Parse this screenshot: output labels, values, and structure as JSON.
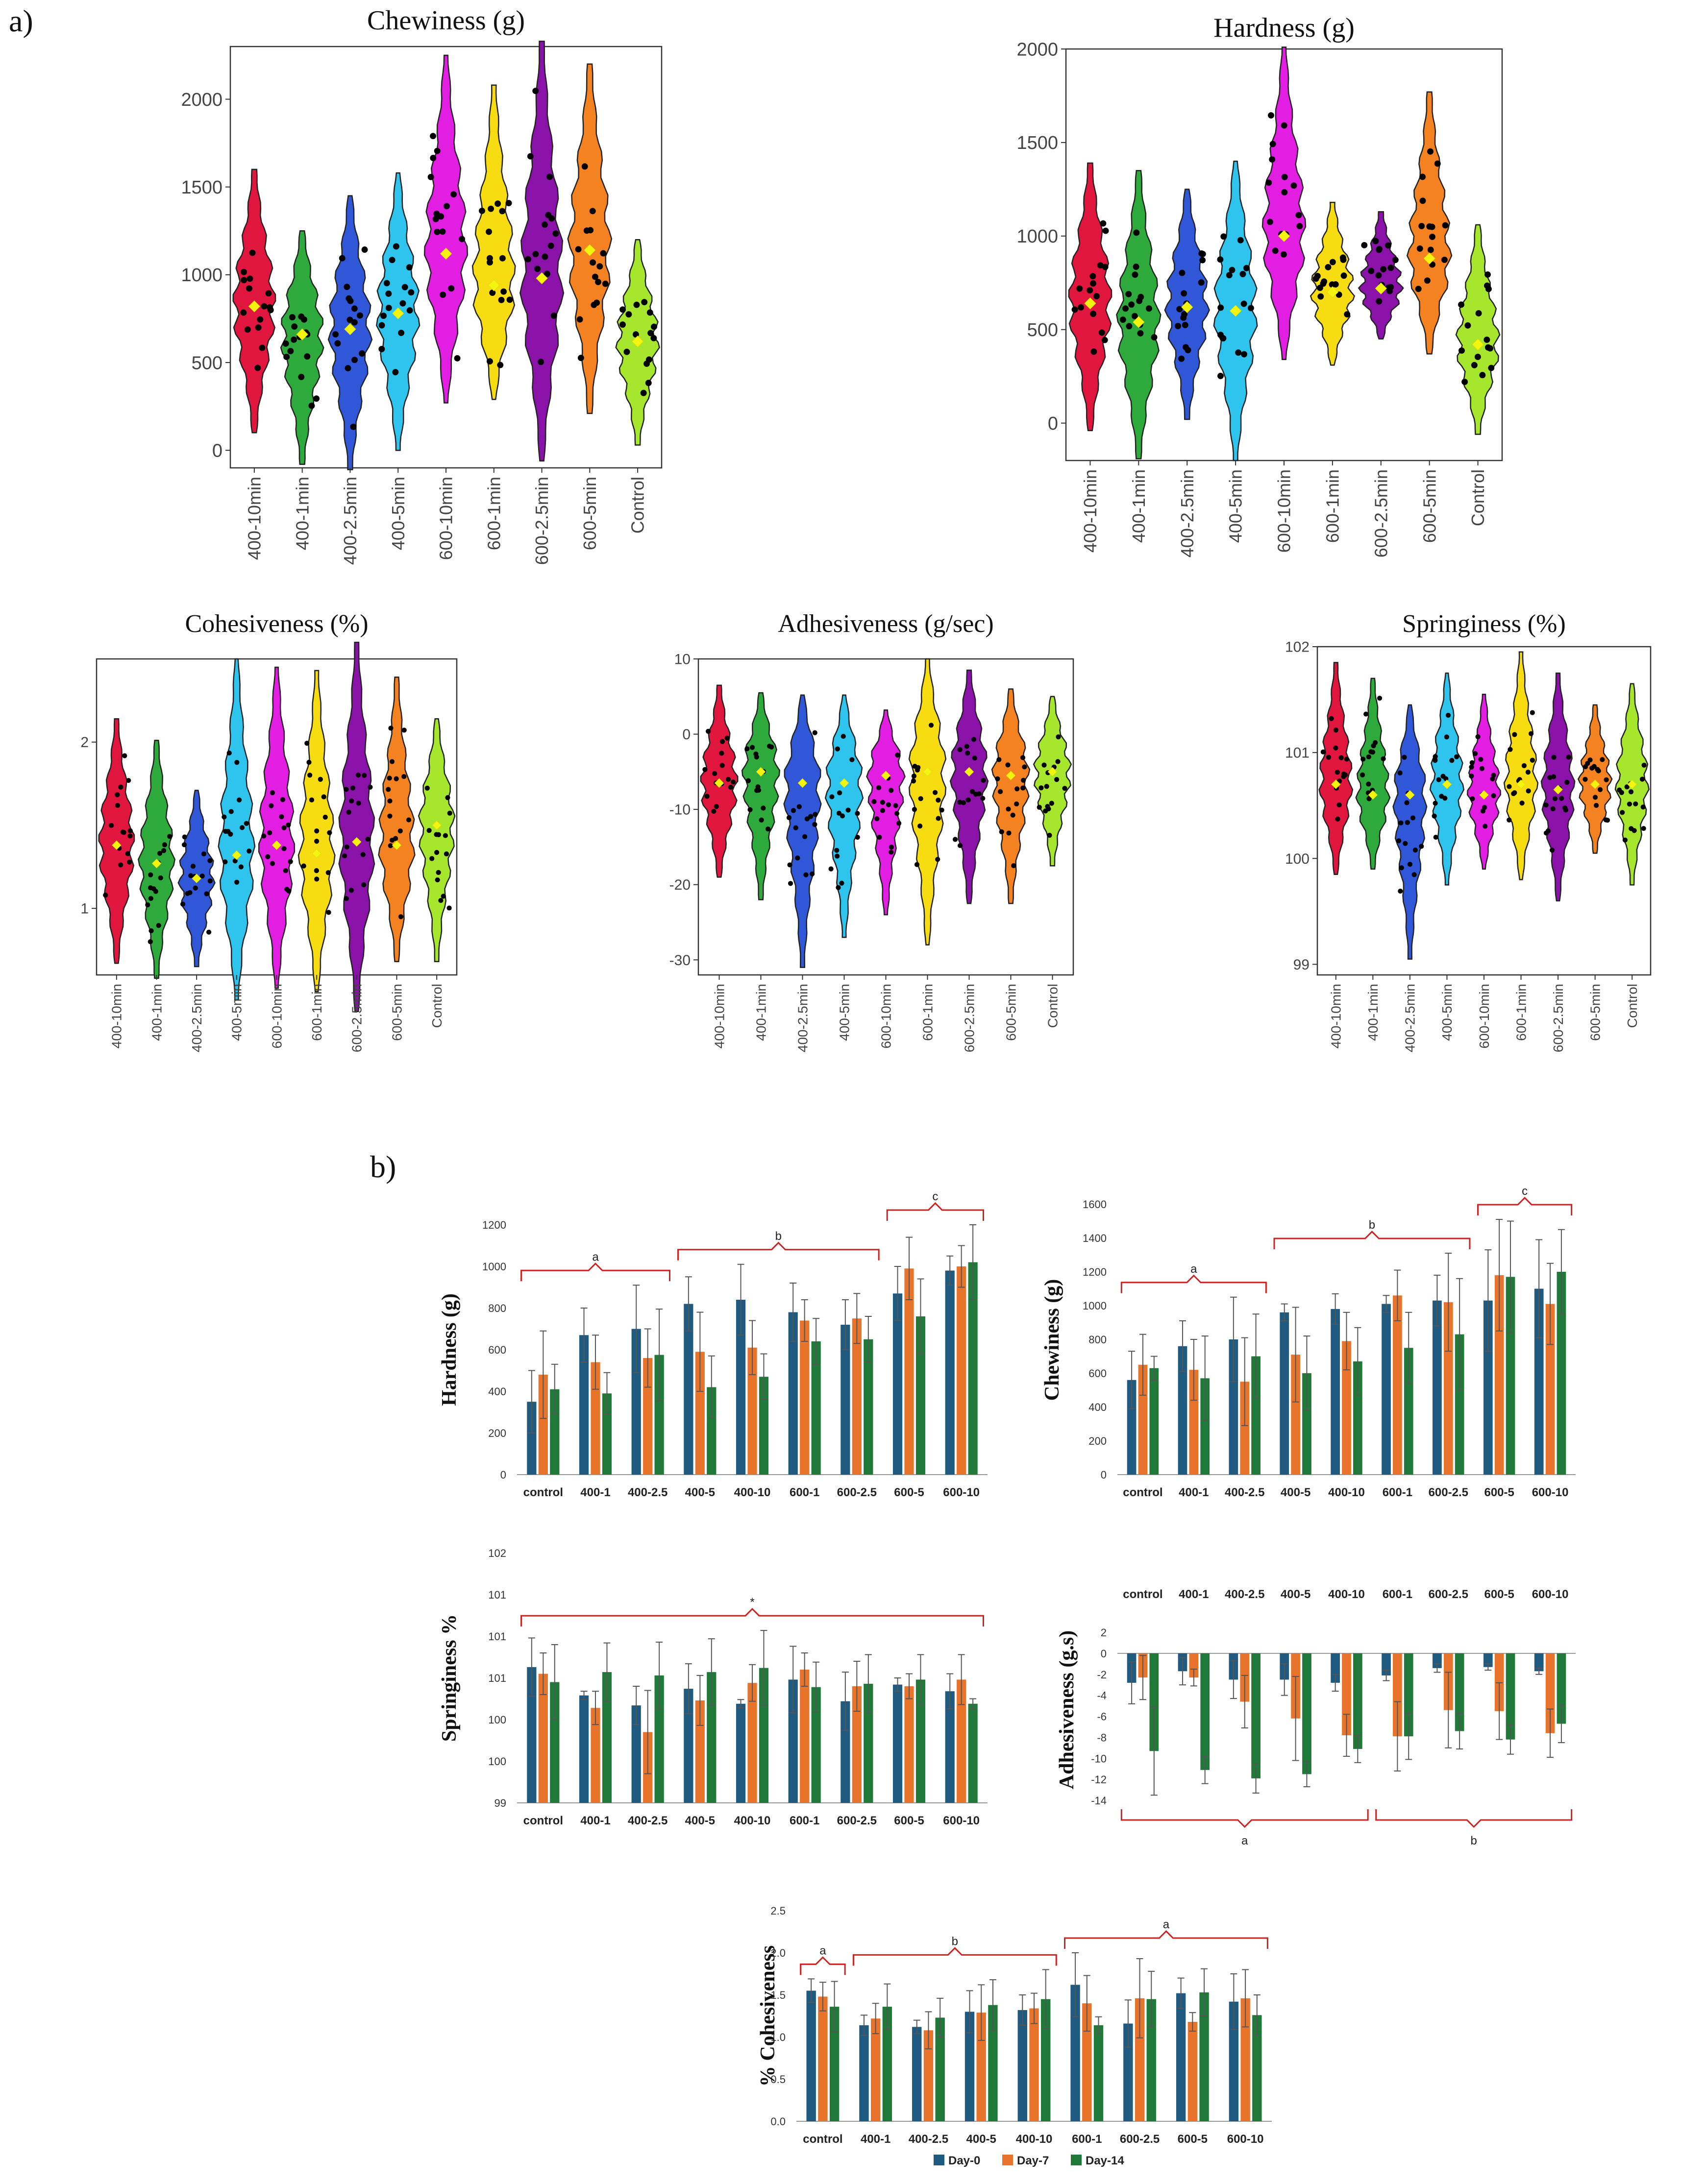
{
  "panel_labels": {
    "a": "a)",
    "b": "b)"
  },
  "violin_categories": [
    "400-10min",
    "400-1min",
    "400-2.5min",
    "400-5min",
    "600-10min",
    "600-1min",
    "600-2.5min",
    "600-5min",
    "Control"
  ],
  "violin_colors": [
    "#e0163f",
    "#2eaa3c",
    "#3157d9",
    "#2fc4ee",
    "#e31ee3",
    "#f7dc12",
    "#8a12a8",
    "#f58220",
    "#a6e62c"
  ],
  "bar_colors": {
    "Day-0": "#1f5a80",
    "Day-7": "#e8742b",
    "Day-14": "#1f7a3a"
  },
  "bracket_color": "#cc2222",
  "legend": [
    "Day-0",
    "Day-7",
    "Day-14"
  ],
  "chart_data": [
    {
      "id": "v_chewiness",
      "type": "violin",
      "title": "Chewiness (g)",
      "ylim": [
        -100,
        2300
      ],
      "yticks": [
        0,
        500,
        1000,
        1500,
        2000
      ],
      "means": [
        820,
        660,
        690,
        780,
        1120,
        940,
        980,
        1140,
        620
      ],
      "ranges": [
        [
          100,
          1600
        ],
        [
          -80,
          1250
        ],
        [
          -110,
          1450
        ],
        [
          0,
          1580
        ],
        [
          270,
          2250
        ],
        [
          290,
          2080
        ],
        [
          -60,
          2330
        ],
        [
          210,
          2200
        ],
        [
          30,
          1200
        ]
      ]
    },
    {
      "id": "v_hardness",
      "type": "violin",
      "title": "Hardness (g)",
      "ylim": [
        -200,
        2000
      ],
      "yticks": [
        0,
        500,
        1000,
        1500,
        2000
      ],
      "means": [
        640,
        540,
        620,
        600,
        1000,
        700,
        720,
        880,
        420
      ],
      "ranges": [
        [
          -40,
          1390
        ],
        [
          -190,
          1350
        ],
        [
          20,
          1250
        ],
        [
          -200,
          1400
        ],
        [
          340,
          2010
        ],
        [
          310,
          1180
        ],
        [
          450,
          1130
        ],
        [
          370,
          1770
        ],
        [
          -60,
          1060
        ]
      ]
    },
    {
      "id": "v_cohesiveness",
      "type": "violin",
      "title": "Cohesiveness (%)",
      "ylim": [
        0.6,
        2.5
      ],
      "yticks": [
        1,
        2
      ],
      "means": [
        1.38,
        1.27,
        1.18,
        1.32,
        1.38,
        1.33,
        1.4,
        1.38,
        1.5
      ],
      "ranges": [
        [
          0.67,
          2.14
        ],
        [
          0.58,
          2.01
        ],
        [
          0.65,
          1.71
        ],
        [
          0.45,
          2.5
        ],
        [
          0.52,
          2.45
        ],
        [
          0.5,
          2.43
        ],
        [
          0.38,
          2.6
        ],
        [
          0.68,
          2.39
        ],
        [
          0.68,
          2.14
        ]
      ]
    },
    {
      "id": "v_adhesiveness",
      "type": "violin",
      "title": "Adhesiveness (g/sec)",
      "ylim": [
        -32,
        10
      ],
      "yticks": [
        10,
        0,
        -10,
        -20,
        -30
      ],
      "means": [
        -6.5,
        -5,
        -6.5,
        -6.5,
        -5.5,
        -5,
        -5,
        -5.5,
        -5
      ],
      "ranges": [
        [
          -19,
          6.5
        ],
        [
          -22,
          5.5
        ],
        [
          -31,
          5.2
        ],
        [
          -27,
          5.2
        ],
        [
          -24,
          3.2
        ],
        [
          -28,
          10
        ],
        [
          -22.5,
          8.5
        ],
        [
          -22.5,
          6
        ],
        [
          -17.5,
          5
        ]
      ]
    },
    {
      "id": "v_springiness",
      "type": "violin",
      "title": "Springiness (%)",
      "ylim": [
        98.9,
        102
      ],
      "yticks": [
        99,
        100,
        101,
        102
      ],
      "means": [
        100.7,
        100.6,
        100.6,
        100.7,
        100.6,
        100.7,
        100.65,
        100.7,
        100.7
      ],
      "ranges": [
        [
          99.85,
          101.85
        ],
        [
          99.9,
          101.7
        ],
        [
          99.05,
          101.45
        ],
        [
          99.75,
          101.75
        ],
        [
          99.9,
          101.55
        ],
        [
          99.8,
          101.95
        ],
        [
          99.6,
          101.75
        ],
        [
          100.05,
          101.45
        ],
        [
          99.75,
          101.65
        ]
      ]
    },
    {
      "id": "b_hardness",
      "type": "bar",
      "ylabel": "Hardness (g)",
      "categories": [
        "control",
        "400-1",
        "400-2.5",
        "400-5",
        "400-10",
        "600-1",
        "600-2.5",
        "600-5",
        "600-10"
      ],
      "ylim": [
        0,
        1200
      ],
      "yticks": [
        0,
        200,
        400,
        600,
        800,
        1000,
        1200
      ],
      "ytick_labels": [
        "0",
        "200",
        "400",
        "600",
        "800",
        "1000",
        "1200"
      ],
      "series": [
        {
          "name": "Day-0",
          "values": [
            350,
            670,
            700,
            820,
            840,
            780,
            720,
            870,
            980
          ],
          "errors": [
            150,
            130,
            210,
            130,
            170,
            140,
            120,
            130,
            70
          ]
        },
        {
          "name": "Day-7",
          "values": [
            480,
            540,
            560,
            590,
            610,
            740,
            750,
            990,
            1000
          ],
          "errors": [
            210,
            130,
            140,
            190,
            130,
            100,
            120,
            150,
            100
          ]
        },
        {
          "name": "Day-14",
          "values": [
            410,
            390,
            575,
            420,
            470,
            640,
            650,
            760,
            1020
          ],
          "errors": [
            120,
            100,
            220,
            150,
            110,
            110,
            110,
            180,
            180
          ]
        }
      ],
      "brackets": [
        {
          "from": 0,
          "to": 2,
          "label": "a"
        },
        {
          "from": 3,
          "to": 6,
          "label": "b"
        },
        {
          "from": 7,
          "to": 8,
          "label": "c"
        }
      ]
    },
    {
      "id": "b_chewiness",
      "type": "bar",
      "ylabel": "Chewiness (g)",
      "categories": [
        "control",
        "400-1",
        "400-2.5",
        "400-5",
        "400-10",
        "600-1",
        "600-2.5",
        "600-5",
        "600-10"
      ],
      "ylim": [
        0,
        1600
      ],
      "yticks": [
        0,
        200,
        400,
        600,
        800,
        1000,
        1200,
        1400,
        1600
      ],
      "ytick_labels": [
        "0",
        "200",
        "400",
        "600",
        "800",
        "1000",
        "1200",
        "1400",
        "1600"
      ],
      "series": [
        {
          "name": "Day-0",
          "values": [
            560,
            760,
            800,
            960,
            980,
            1010,
            1030,
            1030,
            1100
          ],
          "errors": [
            170,
            150,
            250,
            50,
            90,
            50,
            150,
            300,
            290
          ]
        },
        {
          "name": "Day-7",
          "values": [
            650,
            620,
            550,
            710,
            790,
            1060,
            1020,
            1180,
            1010
          ],
          "errors": [
            180,
            180,
            260,
            280,
            170,
            150,
            290,
            330,
            240
          ]
        },
        {
          "name": "Day-14",
          "values": [
            630,
            570,
            700,
            600,
            670,
            750,
            830,
            1170,
            1200
          ],
          "errors": [
            70,
            250,
            250,
            220,
            200,
            210,
            330,
            330,
            250
          ]
        }
      ],
      "brackets": [
        {
          "from": 0,
          "to": 2,
          "label": "a"
        },
        {
          "from": 3,
          "to": 6,
          "label": "b"
        },
        {
          "from": 7,
          "to": 8,
          "label": "c"
        }
      ]
    },
    {
      "id": "b_springiness",
      "type": "bar",
      "ylabel": "Springiness %",
      "categories": [
        "control",
        "400-1",
        "400-2.5",
        "400-5",
        "400-10",
        "600-1",
        "600-2.5",
        "600-5",
        "600-10"
      ],
      "ylim": [
        99,
        102
      ],
      "yticks": [
        99,
        99.5,
        100,
        100.5,
        101,
        101.5,
        102
      ],
      "ytick_labels": [
        "99",
        "100",
        "100",
        "101",
        "101",
        "101",
        "102"
      ],
      "series": [
        {
          "name": "Day-0",
          "values": [
            100.63,
            100.29,
            100.17,
            100.37,
            100.19,
            100.48,
            100.22,
            100.42,
            100.34
          ],
          "errors": [
            0.35,
            0.05,
            0.23,
            0.3,
            0.05,
            0.4,
            0.35,
            0.08,
            0.21
          ]
        },
        {
          "name": "Day-7",
          "values": [
            100.55,
            100.14,
            99.85,
            100.23,
            100.44,
            100.6,
            100.4,
            100.4,
            100.48
          ],
          "errors": [
            0.25,
            0.2,
            0.5,
            0.3,
            0.22,
            0.2,
            0.3,
            0.15,
            0.3
          ]
        },
        {
          "name": "Day-14",
          "values": [
            100.45,
            100.57,
            100.53,
            100.57,
            100.62,
            100.39,
            100.43,
            100.48,
            100.19
          ],
          "errors": [
            0.45,
            0.35,
            0.4,
            0.4,
            0.45,
            0.3,
            0.35,
            0.3,
            0.06
          ]
        }
      ],
      "brackets": [
        {
          "from": 0,
          "to": 8,
          "label": "*"
        }
      ]
    },
    {
      "id": "b_adhesiveness",
      "type": "bar",
      "ylabel": "Adhesiveness (g.s)",
      "categories": [
        "control",
        "400-1",
        "400-2.5",
        "400-5",
        "400-10",
        "600-1",
        "600-2.5",
        "600-5",
        "600-10"
      ],
      "categories_top": true,
      "ylim": [
        -14,
        2
      ],
      "yticks": [
        2,
        0,
        -2,
        -4,
        -6,
        -8,
        -10,
        -12,
        -14
      ],
      "ytick_labels": [
        "2",
        "0",
        "-2",
        "-4",
        "-6",
        "-8",
        "-10",
        "-12",
        "-14"
      ],
      "series": [
        {
          "name": "Day-0",
          "values": [
            -2.8,
            -1.7,
            -2.5,
            -2.5,
            -2.8,
            -2.1,
            -1.4,
            -1.3,
            -1.7
          ],
          "errors": [
            2,
            1.3,
            1.8,
            1.5,
            0.8,
            0.5,
            0.4,
            0.3,
            0.3
          ]
        },
        {
          "name": "Day-7",
          "values": [
            -2.3,
            -2.3,
            -4.6,
            -6.2,
            -7.8,
            -7.9,
            -5.4,
            -5.5,
            -7.6
          ],
          "errors": [
            2.1,
            0.8,
            2.5,
            4,
            2,
            3.3,
            3.6,
            2.7,
            2.3
          ]
        },
        {
          "name": "Day-14",
          "values": [
            -9.3,
            -11.1,
            -11.9,
            -11.5,
            -9.1,
            -7.9,
            -7.4,
            -8.2,
            -6.7
          ],
          "errors": [
            4.2,
            1.3,
            1.4,
            1.2,
            1.3,
            2.2,
            1.7,
            1.4,
            1.8
          ]
        }
      ],
      "brackets": [
        {
          "from": 0,
          "to": 4,
          "label": "a"
        },
        {
          "from": 5,
          "to": 8,
          "label": "b"
        }
      ]
    },
    {
      "id": "b_cohesiveness",
      "type": "bar",
      "ylabel": "% Cohesiveness",
      "categories": [
        "control",
        "400-1",
        "400-2.5",
        "400-5",
        "400-10",
        "600-1",
        "600-2.5",
        "600-5",
        "600-10"
      ],
      "ylim": [
        0,
        2.5
      ],
      "yticks": [
        0,
        0.5,
        1,
        1.5,
        2,
        2.5
      ],
      "ytick_labels": [
        "0.0",
        "0.5",
        "1.0",
        "1.5",
        "2.0",
        "2.5"
      ],
      "series": [
        {
          "name": "Day-0",
          "values": [
            1.55,
            1.14,
            1.12,
            1.3,
            1.32,
            1.62,
            1.16,
            1.52,
            1.42
          ],
          "errors": [
            0.14,
            0.12,
            0.08,
            0.25,
            0.18,
            0.38,
            0.28,
            0.18,
            0.33
          ]
        },
        {
          "name": "Day-7",
          "values": [
            1.48,
            1.22,
            1.08,
            1.29,
            1.34,
            1.4,
            1.46,
            1.18,
            1.46
          ],
          "errors": [
            0.17,
            0.18,
            0.22,
            0.33,
            0.18,
            0.33,
            0.47,
            0.11,
            0.34
          ]
        },
        {
          "name": "Day-14",
          "values": [
            1.36,
            1.36,
            1.23,
            1.38,
            1.45,
            1.14,
            1.45,
            1.53,
            1.26
          ],
          "errors": [
            0.3,
            0.27,
            0.23,
            0.3,
            0.35,
            0.1,
            0.33,
            0.28,
            0.24
          ]
        }
      ],
      "brackets": [
        {
          "from": 0,
          "to": 0,
          "label": "a"
        },
        {
          "from": 1,
          "to": 4,
          "label": "b"
        },
        {
          "from": 5,
          "to": 8,
          "label": "a"
        }
      ]
    }
  ]
}
